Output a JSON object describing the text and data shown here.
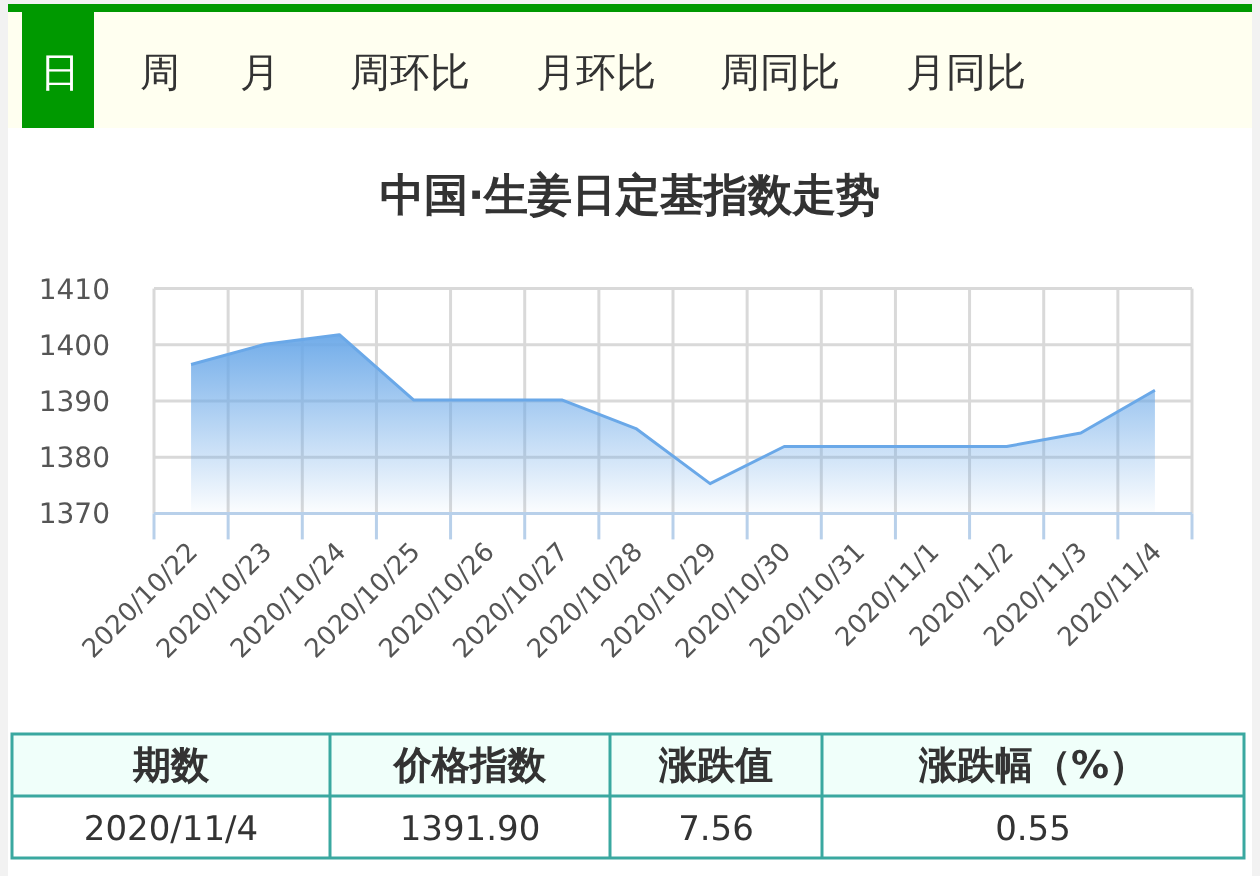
{
  "chart_data": {
    "type": "area",
    "title": "中国·生姜日定基指数走势",
    "categories": [
      "2020/10/22",
      "2020/10/23",
      "2020/10/24",
      "2020/10/25",
      "2020/10/26",
      "2020/10/27",
      "2020/10/28",
      "2020/10/29",
      "2020/10/30",
      "2020/10/31",
      "2020/11/1",
      "2020/11/2",
      "2020/11/3",
      "2020/11/4"
    ],
    "values": [
      1396.5,
      1400.1,
      1401.8,
      1390.2,
      1390.2,
      1390.2,
      1385.1,
      1375.3,
      1381.9,
      1381.9,
      1381.9,
      1381.9,
      1384.3,
      1391.9
    ],
    "color": "#6aa8e8",
    "ylim": [
      1370,
      1410
    ],
    "yticks": [
      1370,
      1380,
      1390,
      1400,
      1410
    ],
    "grid": true,
    "annotations": [
      "日",
      "周",
      "月",
      "周环比",
      "月环比",
      "周同比",
      "月同比",
      "期数",
      "价格指数",
      "涨跌值",
      "涨跌幅（%）",
      "2020/11/4",
      "1391.90",
      "7.56",
      "0.55"
    ]
  }
}
